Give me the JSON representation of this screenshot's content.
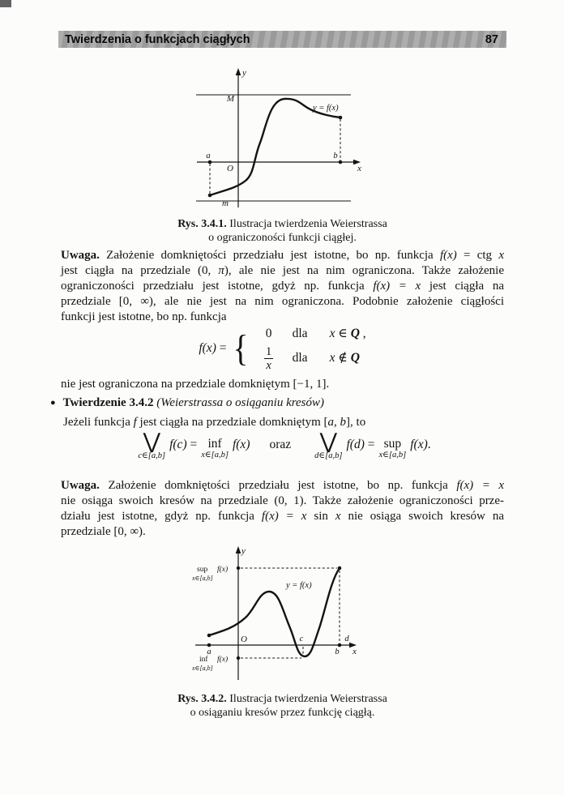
{
  "page": {
    "header_title": "Twierdzenia o funkcjach ciągłych",
    "page_number": "87"
  },
  "fig1": {
    "axis": {
      "x": "x",
      "y": "y",
      "origin": "O"
    },
    "points": {
      "a": "a",
      "b": "b",
      "M": "M",
      "m": "m"
    },
    "curve_label": "y = f(x)",
    "caption": {
      "line1": [
        {
          "t": "Rys. 3.4.1.",
          "b": true
        },
        {
          "t": " Ilustracja twierdzenia Weierstrassa"
        }
      ],
      "line2": [
        {
          "t": "o ograniczoności funkcji ciągłej."
        }
      ]
    }
  },
  "para1": {
    "lines": [
      [
        {
          "t": "Uwaga.",
          "b": true
        },
        {
          "t": " Założenie domkniętości przedziału jest istotne, bo np. funkcja "
        },
        {
          "t": "f(x)",
          "i": true
        },
        {
          "t": " = ctg "
        },
        {
          "t": "x",
          "i": true
        }
      ],
      [
        {
          "t": "jest ciągła na przedziale (0, "
        },
        {
          "t": "π",
          "i": true
        },
        {
          "t": "), ale nie jest na nim ograniczona. Także założenie"
        }
      ],
      [
        {
          "t": "ograniczoności przedziału jest istotne, gdyż np. funkcja "
        },
        {
          "t": "f(x) = x",
          "i": true
        },
        {
          "t": " jest ciągła na"
        }
      ],
      [
        {
          "t": "przedziale [0, ∞), ale nie jest na nim ograniczona. Podobnie założenie ciągłości"
        }
      ],
      [
        {
          "t": "funkcji jest istotne, bo np. funkcja"
        }
      ]
    ]
  },
  "eq1": {
    "lhs": [
      {
        "t": "f(x)",
        "i": true
      },
      {
        "t": " ="
      }
    ],
    "brace": "{",
    "row1": {
      "val": "0",
      "word": "dla",
      "cond": [
        {
          "t": "x",
          "i": true
        },
        {
          "t": " ∈ "
        },
        {
          "t": "Q",
          "i": true,
          "b": true
        },
        {
          "t": " ,"
        }
      ]
    },
    "row2": {
      "num": "1",
      "den": "x",
      "word": "dla",
      "cond": [
        {
          "t": "x",
          "i": true
        },
        {
          "t": " ∉ "
        },
        {
          "t": "Q",
          "i": true,
          "b": true
        }
      ]
    }
  },
  "after_eq1": [
    {
      "t": "nie jest ograniczona na przedziale domkniętym [−1, 1]."
    }
  ],
  "theorem": {
    "bullet": "●",
    "line": [
      {
        "t": "Twierdzenie 3.4.2",
        "b": true
      },
      {
        "t": "  "
      },
      {
        "t": "(Weierstrassa o osiąganiu kresów)",
        "i": true
      }
    ]
  },
  "jezeli": [
    {
      "t": "Jeżeli funkcja "
    },
    {
      "t": "f",
      "i": true
    },
    {
      "t": " jest ciągła na przedziale domkniętym ["
    },
    {
      "t": "a, b",
      "i": true
    },
    {
      "t": "], to"
    }
  ],
  "eq2": {
    "left": {
      "op": "⋁",
      "sub": "c∈[a,b]",
      "mid": [
        {
          "t": "f(c)",
          "i": true
        },
        {
          "t": " = "
        }
      ],
      "op2": "inf",
      "sub2": "x∈[a,b]",
      "tail": [
        {
          "t": "f(x)",
          "i": true
        }
      ]
    },
    "sep": "oraz",
    "right": {
      "op": "⋁",
      "sub": "d∈[a,b]",
      "mid": [
        {
          "t": "f(d)",
          "i": true
        },
        {
          "t": " = "
        }
      ],
      "op2": "sup",
      "sub2": "x∈[a,b]",
      "tail": [
        {
          "t": "f(x)",
          "i": true
        },
        {
          "t": "."
        }
      ]
    }
  },
  "para2": {
    "lines": [
      [
        {
          "t": "Uwaga.",
          "b": true
        },
        {
          "t": " Założenie domkniętości przedziału jest istotne, bo np. funkcja "
        },
        {
          "t": "f(x) = x",
          "i": true
        }
      ],
      [
        {
          "t": "nie osiąga swoich kresów na przedziale (0, 1). Także założenie ograniczoności prze-"
        }
      ],
      [
        {
          "t": "działu jest istotne, gdyż np. funkcja "
        },
        {
          "t": "f(x) = x",
          "i": true
        },
        {
          "t": " sin "
        },
        {
          "t": "x",
          "i": true
        },
        {
          "t": " nie osiąga swoich kresów na"
        }
      ],
      [
        {
          "t": "przedziale [0, ∞)."
        }
      ]
    ]
  },
  "fig2": {
    "axis": {
      "x": "x",
      "y": "y",
      "origin": "O"
    },
    "points": {
      "a": "a",
      "b": "b",
      "c": "c",
      "d": "d"
    },
    "sup": {
      "op": "sup",
      "fx": "f(x)",
      "sub": "x∈[a,b]"
    },
    "inf": {
      "op": "inf",
      "fx": "f(x)",
      "sub": "x∈[a,b]"
    },
    "curve_label": "y = f(x)",
    "caption": {
      "line1": [
        {
          "t": "Rys. 3.4.2.",
          "b": true
        },
        {
          "t": " Ilustracja twierdzenia Weierstrassa"
        }
      ],
      "line2": [
        {
          "t": "o osiąganiu kresów przez funkcję ciągłą."
        }
      ]
    }
  }
}
